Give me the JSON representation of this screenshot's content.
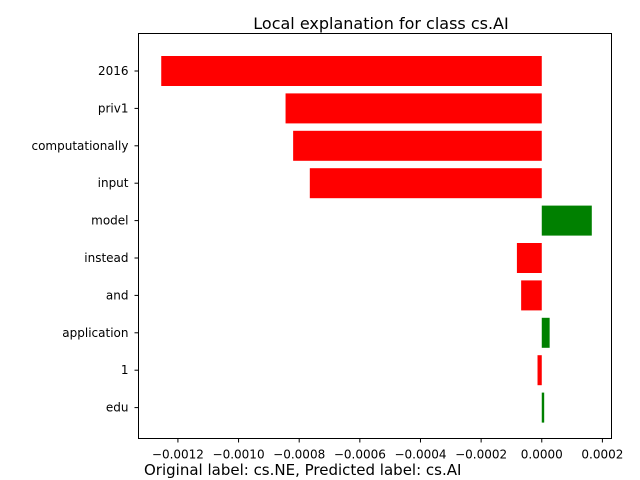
{
  "chart_data": {
    "type": "bar",
    "orientation": "horizontal",
    "title": "Local explanation for class cs.AI",
    "xlabel": "",
    "ylabel": "",
    "categories": [
      "2016",
      "priv1",
      "computationally",
      "input",
      "model",
      "instead",
      "and",
      "application",
      "1",
      "edu"
    ],
    "values": [
      -0.001255,
      -0.000845,
      -0.00082,
      -0.000765,
      0.000165,
      -8.2e-05,
      -6.8e-05,
      2.6e-05,
      -1.4e-05,
      8e-06
    ],
    "xlim": [
      -0.00133,
      0.00023
    ],
    "xticks": [
      -0.0012,
      -0.001,
      -0.0008,
      -0.0006,
      -0.0004,
      -0.0002,
      0.0,
      0.0002
    ],
    "xtick_labels": [
      "−0.0012",
      "−0.0010",
      "−0.0008",
      "−0.0006",
      "−0.0004",
      "−0.0002",
      "0.0000",
      "0.0002"
    ],
    "colors": {
      "negative": "#ff0000",
      "positive": "#008000"
    },
    "grid": false,
    "legend": "none"
  },
  "footer": "Original label: cs.NE, Predicted label: cs.AI"
}
